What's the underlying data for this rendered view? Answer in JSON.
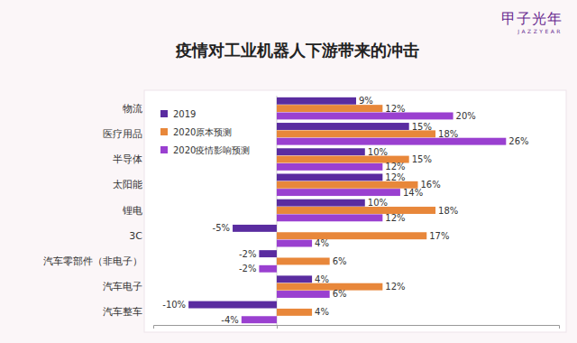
{
  "chart_data": {
    "type": "bar",
    "title": "疫情对工业机器人下游带来的冲击",
    "annotations": [
      "甲子光年",
      "JAZZYEAR"
    ],
    "orientation": "horizontal",
    "categories": [
      "物流",
      "医疗用品",
      "半导体",
      "太阳能",
      "锂电",
      "3C",
      "汽车零部件（非电子）",
      "汽车电子",
      "汽车整车"
    ],
    "series": [
      {
        "name": "2019",
        "color": "#5a2ca0",
        "values": [
          9,
          15,
          10,
          12,
          10,
          -5,
          -2,
          4,
          -10
        ],
        "value_labels": [
          "9%",
          "15%",
          "10%",
          "12%",
          "10%",
          "-5%",
          "-2%",
          "4%",
          "-10%"
        ]
      },
      {
        "name": "2020原本预测",
        "color": "#e8873a",
        "values": [
          12,
          18,
          15,
          16,
          18,
          17,
          6,
          12,
          4
        ],
        "value_labels": [
          "12%",
          "18%",
          "15%",
          "16%",
          "18%",
          "17%",
          "6%",
          "12%",
          "4%"
        ]
      },
      {
        "name": "2020疫情影响预测",
        "color": "#9a40d0",
        "values": [
          20,
          26,
          12,
          14,
          12,
          4,
          -2,
          6,
          -4
        ],
        "value_labels": [
          "20%",
          "26%",
          "12%",
          "14%",
          "12%",
          "4%",
          "-2%",
          "6%",
          "-4%"
        ]
      }
    ],
    "xlim": [
      -14,
      32
    ],
    "xticks": [
      0
    ],
    "tick_labels": false,
    "data_labels": true,
    "legend": "upper left",
    "grid": false
  }
}
